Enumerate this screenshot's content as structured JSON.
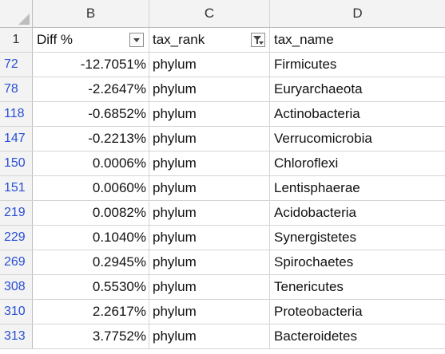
{
  "columns": {
    "b": "B",
    "c": "C",
    "d": "D"
  },
  "header_row": {
    "row_number": "1",
    "b": "Diff %",
    "c": "tax_rank",
    "d": "tax_name"
  },
  "filters": {
    "b": "dropdown-arrow-icon",
    "c": "filter-funnel-icon"
  },
  "rows": [
    {
      "row_number": "72",
      "diff": "-12.7051%",
      "tax_rank": "phylum",
      "tax_name": "Firmicutes"
    },
    {
      "row_number": "78",
      "diff": "-2.2647%",
      "tax_rank": "phylum",
      "tax_name": "Euryarchaeota"
    },
    {
      "row_number": "118",
      "diff": "-0.6852%",
      "tax_rank": "phylum",
      "tax_name": "Actinobacteria"
    },
    {
      "row_number": "147",
      "diff": "-0.2213%",
      "tax_rank": "phylum",
      "tax_name": "Verrucomicrobia"
    },
    {
      "row_number": "150",
      "diff": "0.0006%",
      "tax_rank": "phylum",
      "tax_name": "Chloroflexi"
    },
    {
      "row_number": "151",
      "diff": "0.0060%",
      "tax_rank": "phylum",
      "tax_name": "Lentisphaerae"
    },
    {
      "row_number": "219",
      "diff": "0.0082%",
      "tax_rank": "phylum",
      "tax_name": "Acidobacteria"
    },
    {
      "row_number": "229",
      "diff": "0.1040%",
      "tax_rank": "phylum",
      "tax_name": "Synergistetes"
    },
    {
      "row_number": "269",
      "diff": "0.2945%",
      "tax_rank": "phylum",
      "tax_name": "Spirochaetes"
    },
    {
      "row_number": "308",
      "diff": "0.5530%",
      "tax_rank": "phylum",
      "tax_name": "Tenericutes"
    },
    {
      "row_number": "310",
      "diff": "2.2617%",
      "tax_rank": "phylum",
      "tax_name": "Proteobacteria"
    },
    {
      "row_number": "313",
      "diff": "3.7752%",
      "tax_rank": "phylum",
      "tax_name": "Bacteroidetes"
    }
  ],
  "colors": {
    "row_number_filtered": "#2a4fd4",
    "header_background": "#f3f3f3",
    "gridline": "#d4d4d4"
  }
}
